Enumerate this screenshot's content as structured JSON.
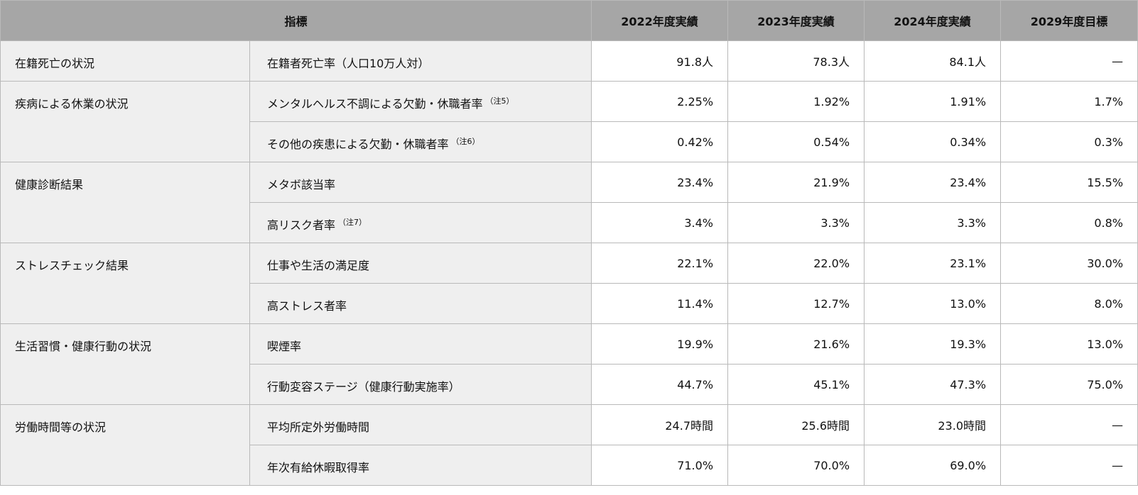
{
  "header": {
    "indicator": "指標",
    "years": [
      "2022年度実績",
      "2023年度実績",
      "2024年度実績",
      "2029年度目標"
    ]
  },
  "groups": [
    {
      "category": "在籍死亡の状況",
      "rows": [
        {
          "label": "在籍者死亡率（人口10万人対）",
          "note": "",
          "values": [
            "91.8人",
            "78.3人",
            "84.1人",
            "—"
          ]
        }
      ]
    },
    {
      "category": "疾病による休業の状況",
      "rows": [
        {
          "label": "メンタルヘルス不調による欠勤・休職者率",
          "note": "（注5）",
          "values": [
            "2.25%",
            "1.92%",
            "1.91%",
            "1.7%"
          ]
        },
        {
          "label": "その他の疾患による欠勤・休職者率",
          "note": "（注6）",
          "values": [
            "0.42%",
            "0.54%",
            "0.34%",
            "0.3%"
          ]
        }
      ]
    },
    {
      "category": "健康診断結果",
      "rows": [
        {
          "label": "メタボ該当率",
          "note": "",
          "values": [
            "23.4%",
            "21.9%",
            "23.4%",
            "15.5%"
          ]
        },
        {
          "label": "高リスク者率",
          "note": "（注7）",
          "values": [
            "3.4%",
            "3.3%",
            "3.3%",
            "0.8%"
          ]
        }
      ]
    },
    {
      "category": "ストレスチェック結果",
      "rows": [
        {
          "label": "仕事や生活の満足度",
          "note": "",
          "values": [
            "22.1%",
            "22.0%",
            "23.1%",
            "30.0%"
          ]
        },
        {
          "label": "高ストレス者率",
          "note": "",
          "values": [
            "11.4%",
            "12.7%",
            "13.0%",
            "8.0%"
          ]
        }
      ]
    },
    {
      "category": "生活習慣・健康行動の状況",
      "rows": [
        {
          "label": "喫煙率",
          "note": "",
          "values": [
            "19.9%",
            "21.6%",
            "19.3%",
            "13.0%"
          ]
        },
        {
          "label": "行動変容ステージ（健康行動実施率）",
          "note": "",
          "values": [
            "44.7%",
            "45.1%",
            "47.3%",
            "75.0%"
          ]
        }
      ]
    },
    {
      "category": "労働時間等の状況",
      "rows": [
        {
          "label": "平均所定外労働時間",
          "note": "",
          "values": [
            "24.7時間",
            "25.6時間",
            "23.0時間",
            "—"
          ]
        },
        {
          "label": "年次有給休暇取得率",
          "note": "",
          "values": [
            "71.0%",
            "70.0%",
            "69.0%",
            "—"
          ]
        }
      ]
    }
  ]
}
